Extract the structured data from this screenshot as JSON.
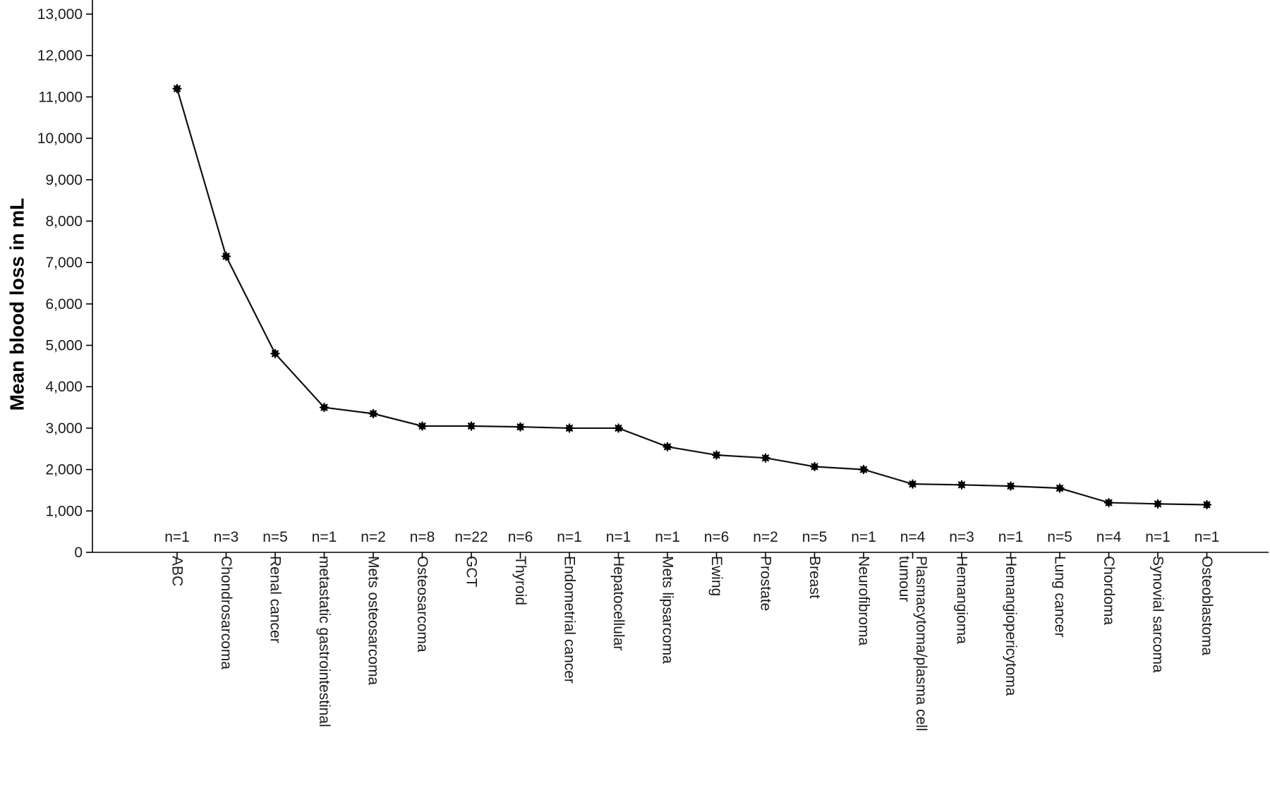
{
  "chart_data": {
    "type": "line",
    "ylabel": "Mean blood loss in mL",
    "xlabel": "",
    "ylim": [
      0,
      13000
    ],
    "yticks": [
      "0",
      "1,000",
      "2,000",
      "3,000",
      "4,000",
      "5,000",
      "6,000",
      "7,000",
      "8,000",
      "9,000",
      "10,000",
      "11,000",
      "12,000",
      "13,000"
    ],
    "categories": [
      [
        "ABC"
      ],
      [
        "Chondrosarcoma"
      ],
      [
        "Renal cancer"
      ],
      [
        "metastatic gastrointestinal"
      ],
      [
        "Mets osteosarcoma"
      ],
      [
        "Osteosarcoma"
      ],
      [
        "GCT"
      ],
      [
        "Thyroid"
      ],
      [
        "Endometrial cancer"
      ],
      [
        "Hepatocellular"
      ],
      [
        "Mets lipsarcoma"
      ],
      [
        "Ewing"
      ],
      [
        "Prostate"
      ],
      [
        "Breast"
      ],
      [
        "Neurofibroma"
      ],
      [
        "Plasmacytoma/plasma cell",
        "tumour"
      ],
      [
        "Hemangioma"
      ],
      [
        "Hemangiopericytoma"
      ],
      [
        "Lung cancer"
      ],
      [
        "Chordoma"
      ],
      [
        "Synovial sarcoma"
      ],
      [
        "Osteoblastoma"
      ]
    ],
    "n_labels": [
      "n=1",
      "n=3",
      "n=5",
      "n=1",
      "n=2",
      "n=8",
      "n=22",
      "n=6",
      "n=1",
      "n=1",
      "n=1",
      "n=6",
      "n=2",
      "n=5",
      "n=1",
      "n=4",
      "n=3",
      "n=1",
      "n=5",
      "n=4",
      "n=1",
      "n=1"
    ],
    "values": [
      11200,
      7150,
      4800,
      3500,
      3350,
      3050,
      3050,
      3030,
      3000,
      3000,
      2550,
      2350,
      2280,
      2070,
      2000,
      1650,
      1630,
      1600,
      1550,
      1200,
      1170,
      1150
    ],
    "grid": false,
    "legend": "none"
  }
}
